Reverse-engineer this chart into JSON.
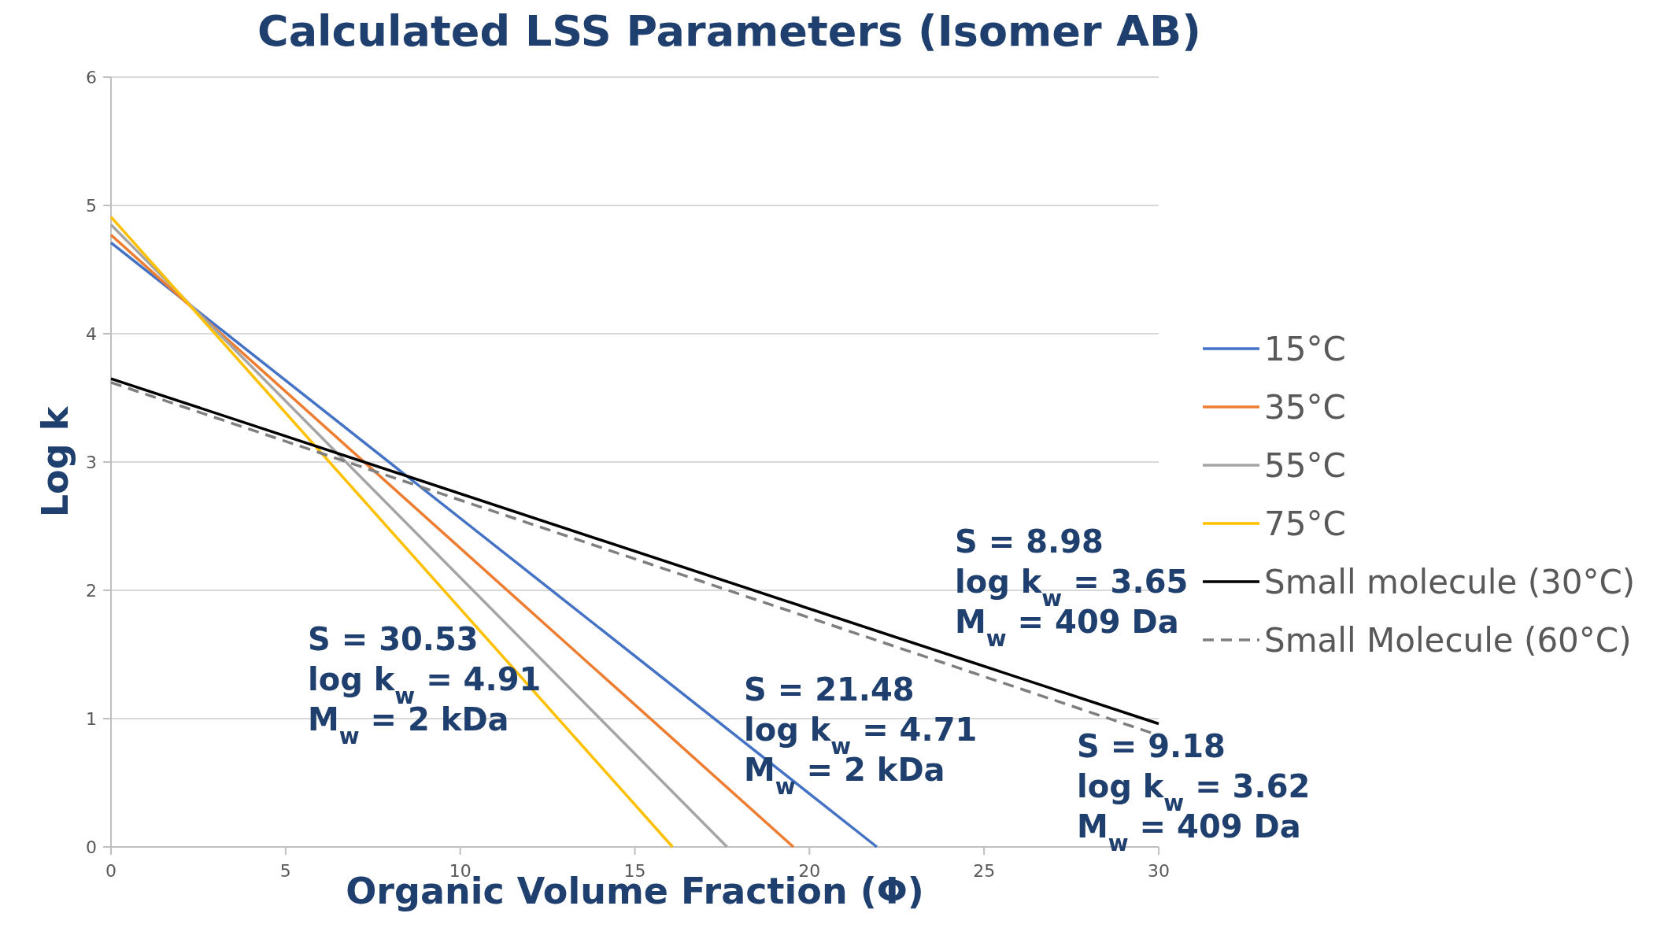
{
  "chart_data": {
    "type": "line",
    "title": "Calculated LSS Parameters (Isomer AB)",
    "xlabel": "Organic Volume Fraction (Φ)",
    "ylabel": "Log k",
    "xlim": [
      0,
      30
    ],
    "xticks": [
      0,
      5,
      10,
      15,
      20,
      25,
      30
    ],
    "ylim": [
      0,
      6
    ],
    "yticks": [
      0,
      1,
      2,
      3,
      4,
      5,
      6
    ],
    "grid": "y",
    "legend": "right",
    "marker": "none",
    "series": [
      {
        "name": "15°C",
        "color": "#4472c4",
        "x": [
          0,
          21.93
        ],
        "values": [
          4.71,
          0
        ]
      },
      {
        "name": "35°C",
        "color": "#ed7d31",
        "x": [
          0,
          19.54
        ],
        "values": [
          4.77,
          0
        ]
      },
      {
        "name": "55°C",
        "color": "#a5a5a5",
        "x": [
          0,
          17.64
        ],
        "values": [
          4.85,
          0
        ]
      },
      {
        "name": "75°C",
        "color": "#ffc000",
        "x": [
          0,
          16.08
        ],
        "values": [
          4.91,
          0
        ]
      },
      {
        "name": "Small molecule (30°C)",
        "color": "#000000",
        "x": [
          0,
          30
        ],
        "values": [
          3.65,
          0.96
        ]
      },
      {
        "name": "Small Molecule (60°C)",
        "color": "#7f7f7f",
        "line_style": "dashed",
        "x": [
          0,
          30
        ],
        "values": [
          3.62,
          0.87
        ]
      }
    ],
    "annotations": [
      "S = 30.53",
      "log k$_{w}$ = 4.91",
      "M$_{w}$  = 2 kDa",
      "S = 21.48",
      "log k$_{w}$ = 4.71",
      "M$_{w}$  = 2 kDa",
      "S = 8.98",
      "log k$_{w}$ = 3.65",
      "M$_{w}$  = 409 Da",
      "S = 9.18",
      "log k$_{w}$ = 3.62",
      "M$_{w}$  = 409 Da"
    ]
  }
}
